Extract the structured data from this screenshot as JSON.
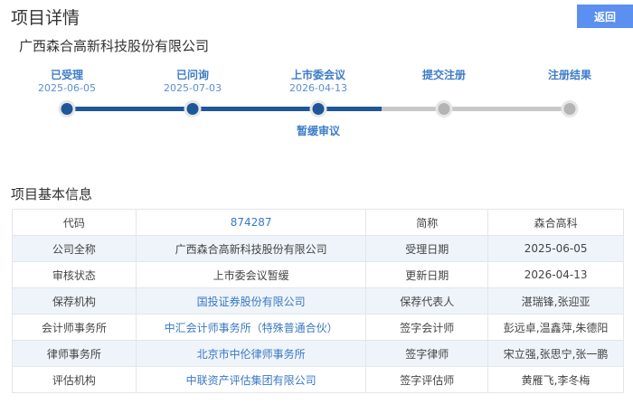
{
  "header": {
    "title": "项目详情",
    "back_label": "返回"
  },
  "company_name": "广西森合高新科技股份有限公司",
  "progress": {
    "steps": [
      {
        "label": "已受理",
        "date": "2025-06-05",
        "done": true
      },
      {
        "label": "已问询",
        "date": "2025-07-03",
        "done": true
      },
      {
        "label": "上市委会议",
        "date": "2026-04-13",
        "done": true,
        "sub": "暂缓审议"
      },
      {
        "label": "提交注册",
        "date": "",
        "done": false
      },
      {
        "label": "注册结果",
        "date": "",
        "done": false
      }
    ],
    "active_color": "#1e5799",
    "inactive_color": "#b4b4b4"
  },
  "section_title": "项目基本信息",
  "table": [
    {
      "k1": "代码",
      "v1": "874287",
      "k2": "简称",
      "v2": "森合高科",
      "link": true
    },
    {
      "k1": "公司全称",
      "v1": "广西森合高新科技股份有限公司",
      "k2": "受理日期",
      "v2": "2025-06-05",
      "link": false
    },
    {
      "k1": "审核状态",
      "v1": "上市委会议暂缓",
      "k2": "更新日期",
      "v2": "2026-04-13",
      "link": false
    },
    {
      "k1": "保荐机构",
      "v1": "国投证券股份有限公司",
      "k2": "保荐代表人",
      "v2": "湛瑞锋,张迎亚",
      "link": true
    },
    {
      "k1": "会计师事务所",
      "v1": "中汇会计师事务所（特殊普通合伙）",
      "k2": "签字会计师",
      "v2": "彭远卓,温鑫萍,朱德阳",
      "link": true
    },
    {
      "k1": "律师事务所",
      "v1": "北京市中伦律师事务所",
      "k2": "签字律师",
      "v2": "宋立强,张思宁,张一鹏",
      "link": true
    },
    {
      "k1": "评估机构",
      "v1": "中联资产评估集团有限公司",
      "k2": "签字评估师",
      "v2": "黄雁飞,李冬梅",
      "link": true
    }
  ]
}
